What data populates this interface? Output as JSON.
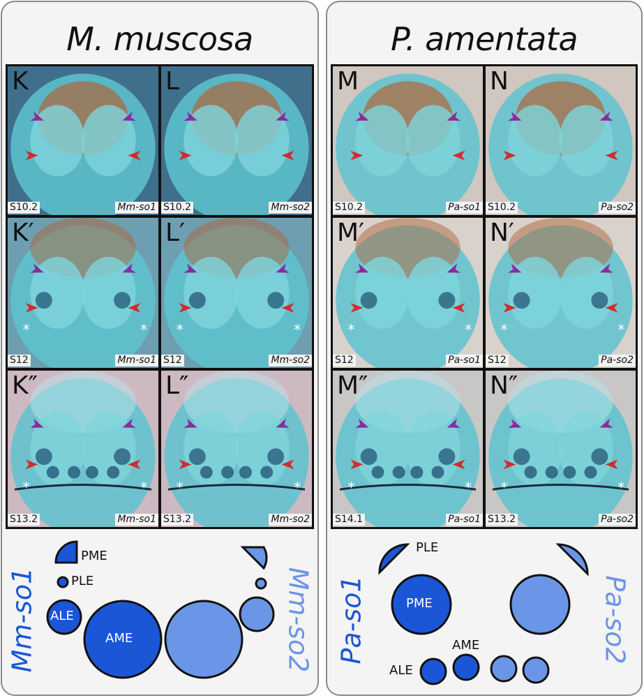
{
  "left": {
    "species": "M. muscosa",
    "panels": [
      {
        "letter": "K",
        "stage": "S10.2",
        "gene": "Mm-so1"
      },
      {
        "letter": "L",
        "stage": "S10.2",
        "gene": "Mm-so2"
      },
      {
        "letter": "K′",
        "stage": "S12",
        "gene": "Mm-so1"
      },
      {
        "letter": "L′",
        "stage": "S12",
        "gene": "Mm-so2"
      },
      {
        "letter": "K″",
        "stage": "S13.2",
        "gene": "Mm-so1"
      },
      {
        "letter": "L″",
        "stage": "S13.2",
        "gene": "Mm-so2"
      }
    ],
    "diagram": {
      "gene_left": "Mm-so1",
      "gene_right": "Mm-so2",
      "labels": {
        "pme": "PME",
        "ple": "PLE",
        "ale": "ALE",
        "ame": "AME"
      }
    }
  },
  "right": {
    "species": "P. amentata",
    "panels": [
      {
        "letter": "M",
        "stage": "S10.2",
        "gene": "Pa-so1"
      },
      {
        "letter": "N",
        "stage": "S10.2",
        "gene": "Pa-so2"
      },
      {
        "letter": "M′",
        "stage": "S12",
        "gene": "Pa-so1"
      },
      {
        "letter": "N′",
        "stage": "S12",
        "gene": "Pa-so2"
      },
      {
        "letter": "M″",
        "stage": "S14.1",
        "gene": "Pa-so1"
      },
      {
        "letter": "N″",
        "stage": "S13.2",
        "gene": "Pa-so2"
      }
    ],
    "diagram": {
      "gene_left": "Pa-so1",
      "gene_right": "Pa-so2",
      "labels": {
        "ple": "PLE",
        "pme": "PME",
        "ame": "AME",
        "ale": "ALE"
      }
    }
  },
  "colors": {
    "so1": "#1a56d6",
    "so2": "#6b95e6",
    "tissue": "#5ec3cf",
    "yolk": "#b0663a",
    "arrow_red": "#d42a2a",
    "arrow_purple": "#8a2ba0"
  }
}
